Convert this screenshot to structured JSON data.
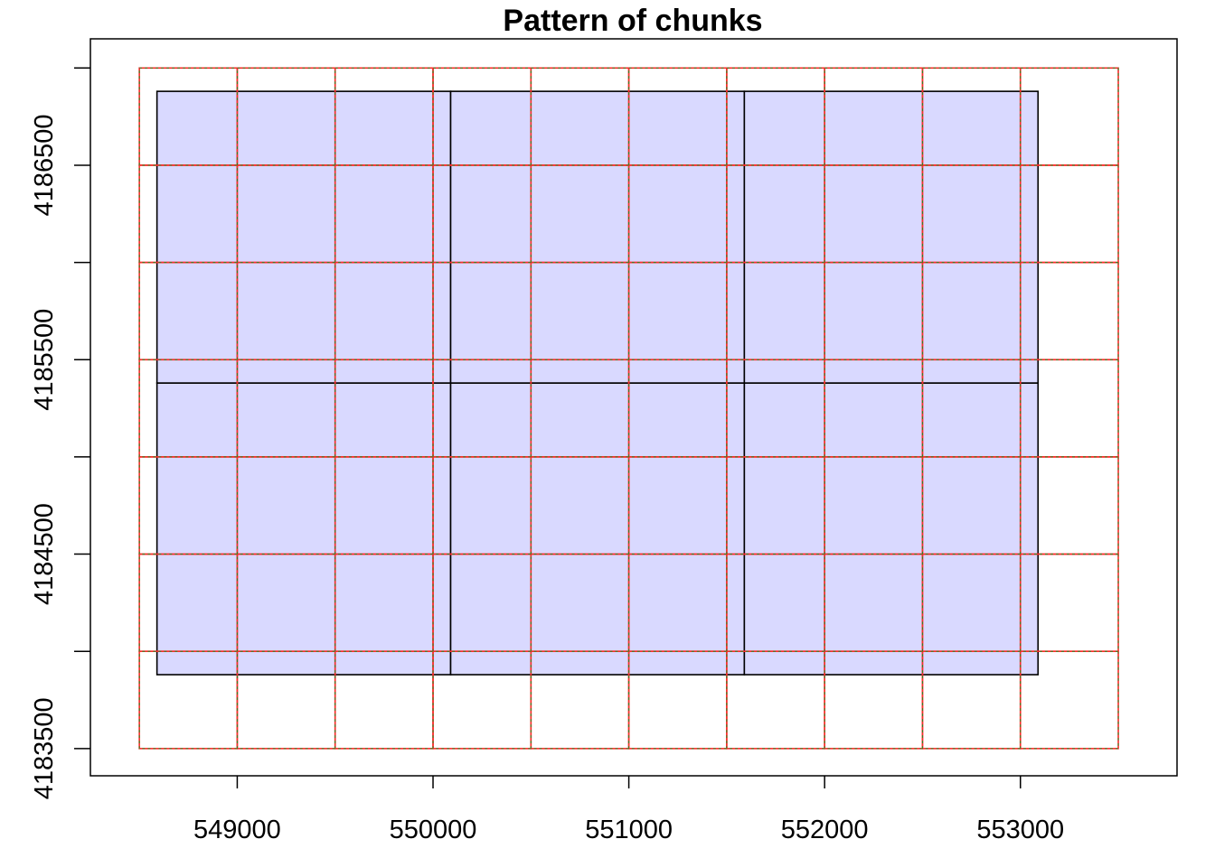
{
  "chart_data": {
    "type": "map",
    "title": "Pattern of chunks",
    "xlabel": "",
    "ylabel": "",
    "xlim": [
      548250,
      553800
    ],
    "ylim": [
      4183360,
      4187150
    ],
    "x_ticks": [
      549000,
      550000,
      551000,
      552000,
      553000
    ],
    "x_tick_labels": [
      "549000",
      "550000",
      "551000",
      "552000",
      "553000"
    ],
    "y_ticks": [
      4183500,
      4184000,
      4184500,
      4185000,
      4185500,
      4186000,
      4186500,
      4187000
    ],
    "y_tick_labels": [
      "4183500",
      "",
      "4184500",
      "",
      "4185500",
      "",
      "4186500",
      ""
    ],
    "tiles": [
      {
        "xmin": 548590,
        "xmax": 550090,
        "ymin": 4183880,
        "ymax": 4185380
      },
      {
        "xmin": 550090,
        "xmax": 551590,
        "ymin": 4183880,
        "ymax": 4185380
      },
      {
        "xmin": 551590,
        "xmax": 553090,
        "ymin": 4183880,
        "ymax": 4185380
      },
      {
        "xmin": 548590,
        "xmax": 550090,
        "ymin": 4185380,
        "ymax": 4186880
      },
      {
        "xmin": 550090,
        "xmax": 551590,
        "ymin": 4185380,
        "ymax": 4186880
      },
      {
        "xmin": 551590,
        "xmax": 553090,
        "ymin": 4185380,
        "ymax": 4186880
      }
    ],
    "chunk_grid": {
      "x_breaks": [
        548500,
        549000,
        549500,
        550000,
        550500,
        551000,
        551500,
        552000,
        552500,
        553000,
        553500
      ],
      "y_breaks": [
        4183500,
        4184000,
        4184500,
        4185000,
        4185500,
        4186000,
        4186500,
        4187000
      ]
    },
    "colors": {
      "tile_fill": "#d9d9ff",
      "tile_border": "#000000",
      "chunk_border": "#ff2a2a",
      "chunk_dash": "#228b22",
      "axis": "#000000"
    },
    "grid": false,
    "legend": "none"
  }
}
